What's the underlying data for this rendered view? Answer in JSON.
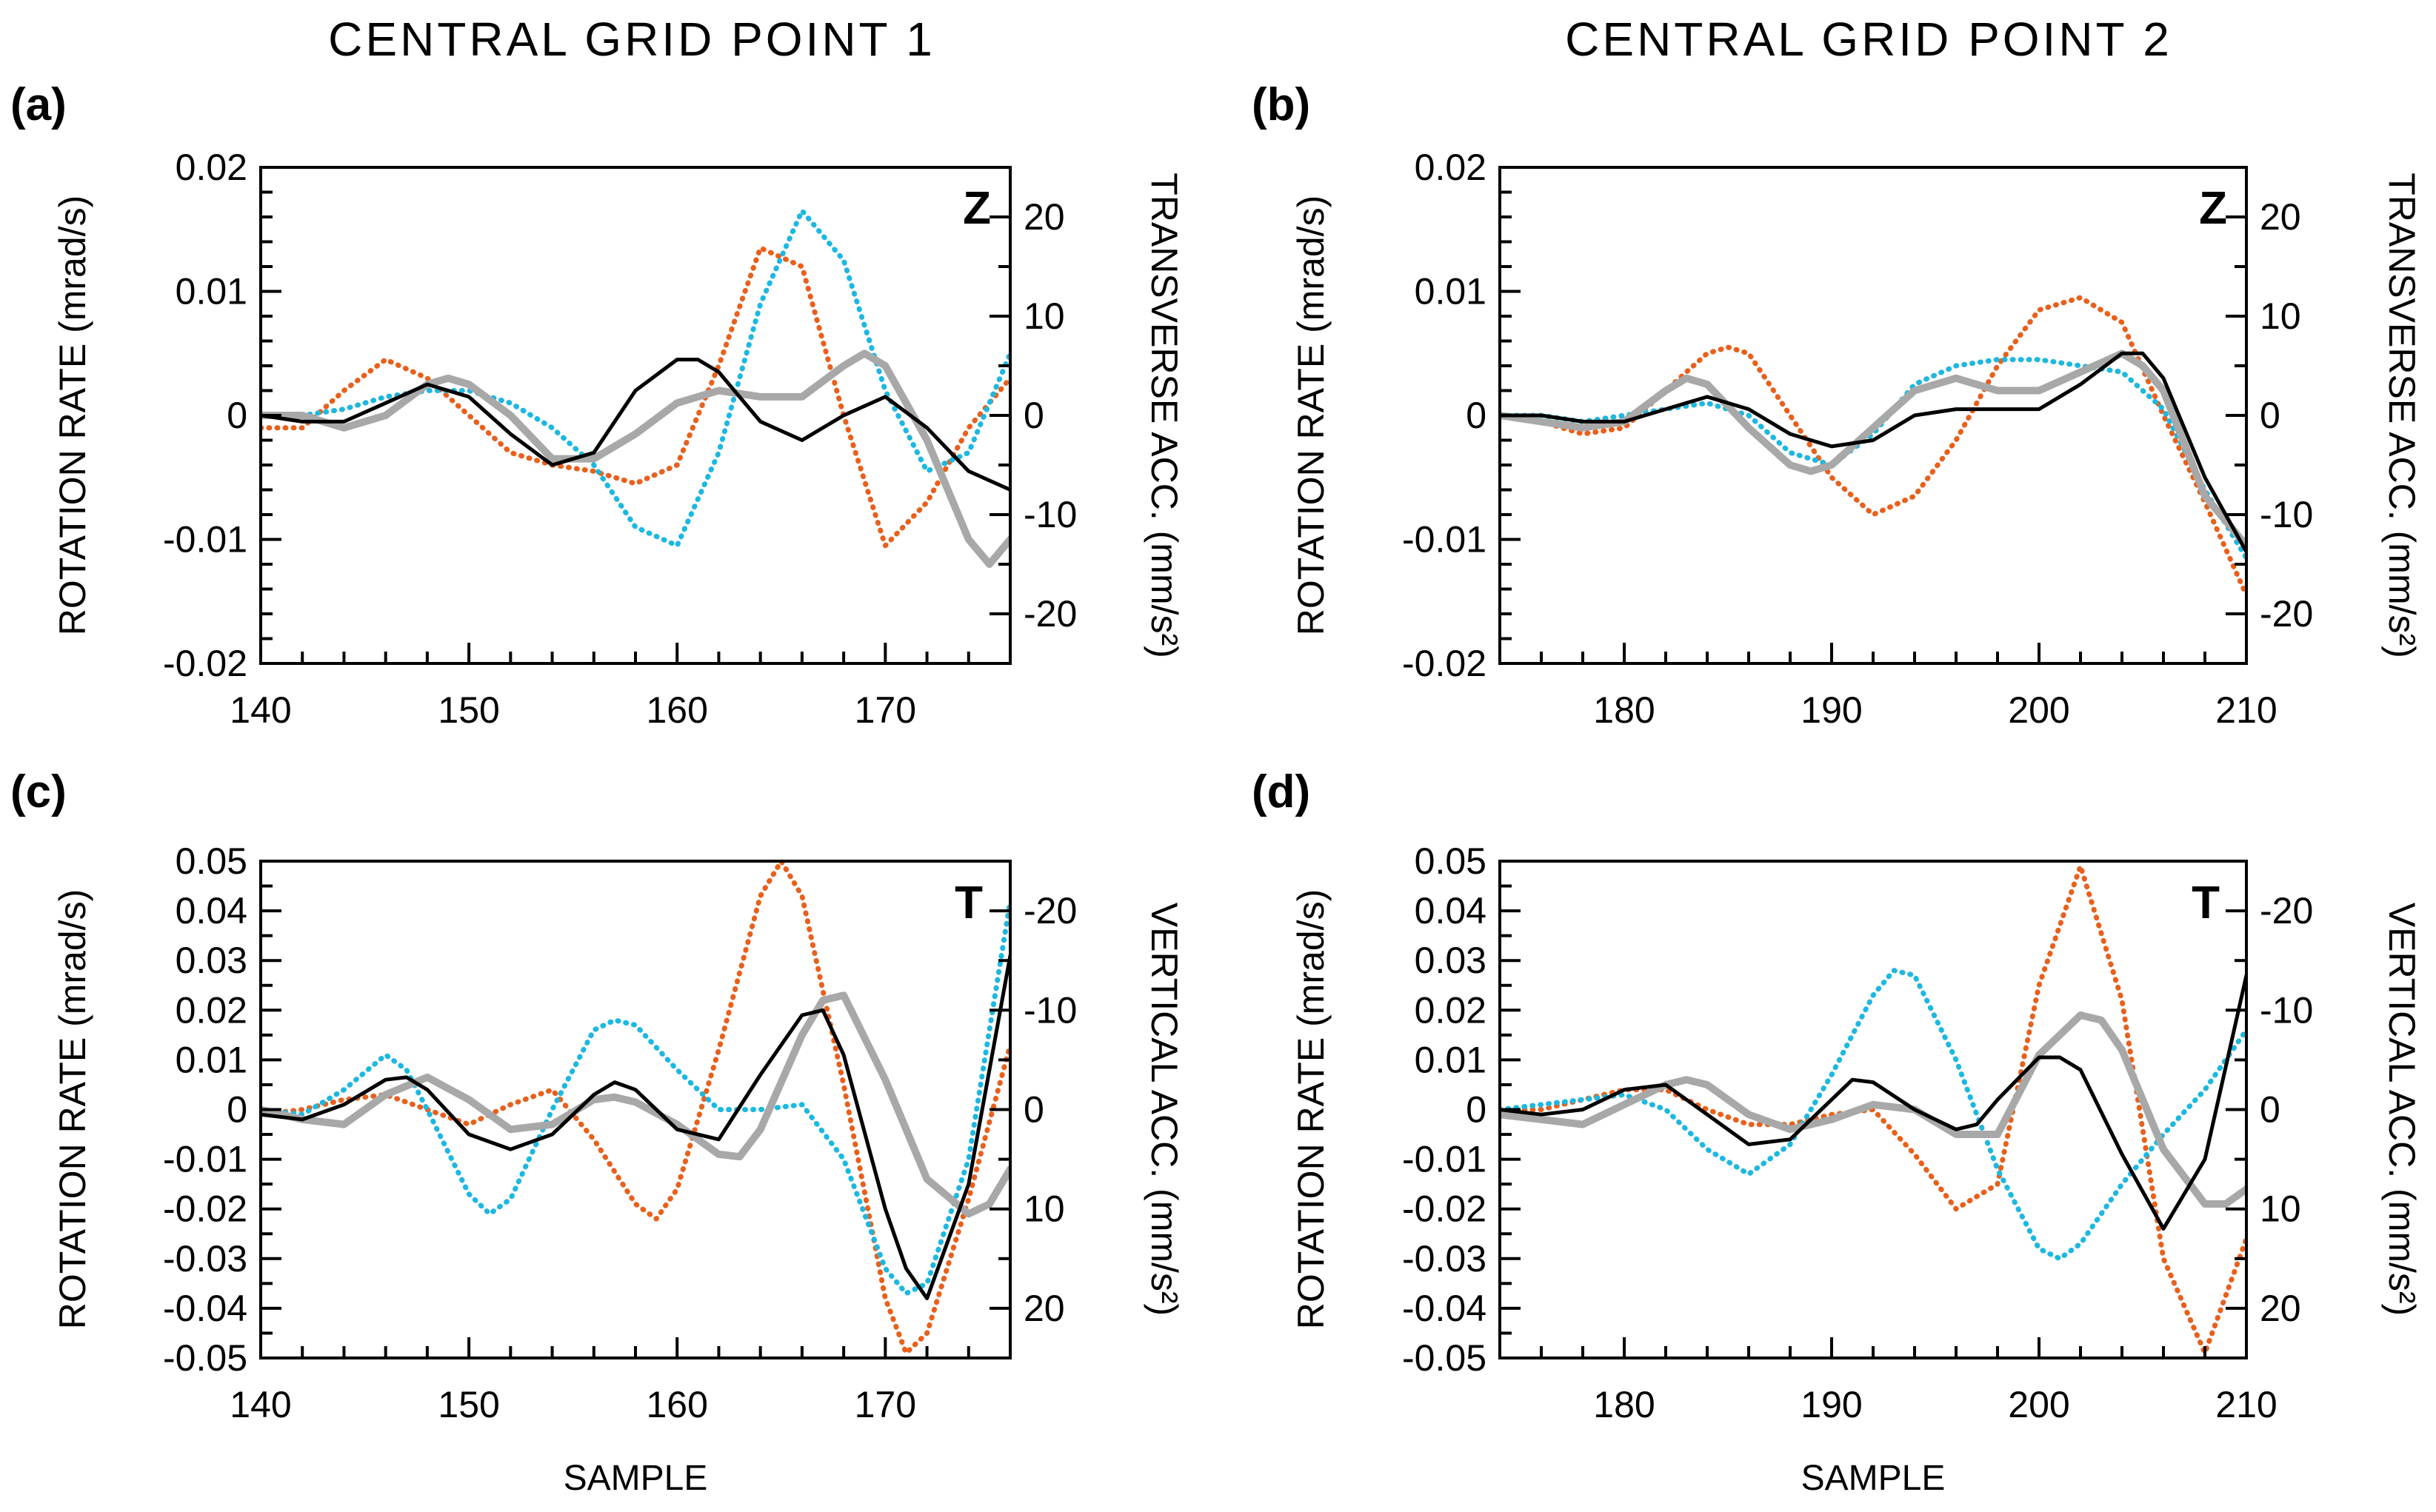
{
  "figure": {
    "col_titles": [
      "CENTRAL  GRID  POINT  1",
      "CENTRAL  GRID  POINT  2"
    ],
    "series_colors": {
      "dotted_orange": "#E8601C",
      "dotted_cyan": "#1CB8E0",
      "solid_black": "#000000",
      "solid_gray": "#A8A8A8"
    }
  },
  "chart_data": [
    {
      "type": "line",
      "panel": "(a)",
      "component": "Z",
      "xlabel": "",
      "ylabel_left": "ROTATION  RATE  (mrad/s)",
      "ylabel_right": "TRANSVERSE ACC. (mm/s²)",
      "xlim": [
        140,
        176
      ],
      "xticks": [
        140,
        150,
        160,
        170
      ],
      "ylim": [
        -0.02,
        0.02
      ],
      "yticks": [
        -0.02,
        -0.01,
        0,
        0.01,
        0.02
      ],
      "ytick_labels": [
        "-0.02",
        "-0.01",
        "0",
        "0.01",
        "0.02"
      ],
      "right_ylim_top": 25,
      "right_ylim_bottom": -25,
      "right_ticks": [
        20,
        10,
        0,
        -10,
        -20
      ],
      "grid": false,
      "series": [
        {
          "name": "orange dotted",
          "axis": "left",
          "style": "dotted_orange",
          "x": [
            140,
            142,
            144,
            146,
            148,
            150,
            152,
            154,
            156,
            158,
            160,
            162,
            164,
            166,
            168,
            170,
            172,
            174,
            176
          ],
          "y": [
            -0.001,
            -0.001,
            0.002,
            0.0045,
            0.003,
            0,
            -0.003,
            -0.004,
            -0.0045,
            -0.0055,
            -0.004,
            0.004,
            0.0135,
            0.012,
            0.0,
            -0.0105,
            -0.007,
            -0.001,
            0.003
          ]
        },
        {
          "name": "cyan dotted",
          "axis": "left",
          "style": "dotted_cyan",
          "x": [
            140,
            142,
            144,
            146,
            148,
            150,
            152,
            154,
            156,
            158,
            160,
            162,
            164,
            166,
            168,
            170,
            172,
            174,
            176
          ],
          "y": [
            0,
            0,
            0.0005,
            0.0015,
            0.002,
            0.002,
            0.001,
            -0.001,
            -0.004,
            -0.009,
            -0.0105,
            -0.003,
            0.009,
            0.0165,
            0.0125,
            0.002,
            -0.0045,
            -0.003,
            0.005
          ]
        },
        {
          "name": "black solid",
          "axis": "left",
          "style": "solid_black",
          "x": [
            140,
            142,
            144,
            146,
            148,
            150,
            152,
            154,
            156,
            158,
            160,
            161,
            162,
            164,
            166,
            168,
            170,
            172,
            174,
            176
          ],
          "y": [
            0,
            -0.0005,
            -0.0005,
            0.001,
            0.0025,
            0.0015,
            -0.0015,
            -0.004,
            -0.003,
            0.002,
            0.0045,
            0.0045,
            0.0035,
            -0.0005,
            -0.002,
            0,
            0.0015,
            -0.001,
            -0.0045,
            -0.006
          ]
        },
        {
          "name": "gray solid",
          "axis": "left",
          "style": "solid_gray",
          "x": [
            140,
            142,
            144,
            146,
            148,
            149,
            150,
            152,
            154,
            156,
            158,
            160,
            162,
            164,
            166,
            168,
            169,
            170,
            172,
            174,
            175,
            176
          ],
          "y": [
            0,
            0,
            -0.001,
            0,
            0.0025,
            0.003,
            0.0025,
            0,
            -0.0035,
            -0.0035,
            -0.0015,
            0.001,
            0.002,
            0.0015,
            0.0015,
            0.004,
            0.005,
            0.004,
            -0.002,
            -0.01,
            -0.012,
            -0.01
          ]
        }
      ]
    },
    {
      "type": "line",
      "panel": "(b)",
      "component": "Z",
      "xlabel": "",
      "ylabel_left": "ROTATION  RATE  (mrad/s)",
      "ylabel_right": "TRANSVERSE ACC. (mm/s²)",
      "xlim": [
        174,
        210
      ],
      "xticks": [
        180,
        190,
        200,
        210
      ],
      "ylim": [
        -0.02,
        0.02
      ],
      "yticks": [
        -0.02,
        -0.01,
        0,
        0.01,
        0.02
      ],
      "ytick_labels": [
        "-0.02",
        "-0.01",
        "0",
        "0.01",
        "0.02"
      ],
      "right_ylim_top": 25,
      "right_ylim_bottom": -25,
      "right_ticks": [
        20,
        10,
        0,
        -10,
        -20
      ],
      "grid": false,
      "series": [
        {
          "name": "orange dotted",
          "axis": "left",
          "style": "dotted_orange",
          "x": [
            174,
            176,
            178,
            180,
            182,
            184,
            185,
            186,
            188,
            190,
            192,
            194,
            196,
            198,
            200,
            202,
            204,
            206,
            208,
            210
          ],
          "y": [
            0,
            -0.0005,
            -0.0015,
            -0.001,
            0.002,
            0.005,
            0.0055,
            0.005,
            0,
            -0.005,
            -0.008,
            -0.0065,
            -0.002,
            0.004,
            0.0085,
            0.0095,
            0.0075,
            0,
            -0.007,
            -0.0145
          ]
        },
        {
          "name": "cyan dotted",
          "axis": "left",
          "style": "dotted_cyan",
          "x": [
            174,
            176,
            178,
            180,
            182,
            184,
            186,
            188,
            190,
            192,
            194,
            196,
            198,
            200,
            202,
            204,
            206,
            208,
            210
          ],
          "y": [
            0,
            0,
            -0.0005,
            0,
            0.0005,
            0.001,
            0,
            -0.003,
            -0.004,
            -0.0015,
            0.0025,
            0.004,
            0.0045,
            0.0045,
            0.004,
            0.0035,
            0.0005,
            -0.006,
            -0.0115
          ]
        },
        {
          "name": "black solid",
          "axis": "left",
          "style": "solid_black",
          "x": [
            174,
            176,
            178,
            180,
            182,
            184,
            186,
            188,
            190,
            192,
            194,
            196,
            198,
            200,
            202,
            204,
            205,
            206,
            208,
            210
          ],
          "y": [
            0,
            0,
            -0.0005,
            -0.0005,
            0.0005,
            0.0015,
            0.0005,
            -0.0015,
            -0.0025,
            -0.002,
            0,
            0.0005,
            0.0005,
            0.0005,
            0.0025,
            0.005,
            0.005,
            0.003,
            -0.005,
            -0.011
          ]
        },
        {
          "name": "gray solid",
          "axis": "left",
          "style": "solid_gray",
          "x": [
            174,
            176,
            178,
            180,
            182,
            183,
            184,
            186,
            188,
            189,
            190,
            192,
            194,
            196,
            198,
            200,
            202,
            204,
            205,
            206,
            208,
            210
          ],
          "y": [
            0,
            -0.0005,
            -0.001,
            -0.0005,
            0.002,
            0.003,
            0.0025,
            -0.001,
            -0.004,
            -0.0045,
            -0.004,
            -0.001,
            0.002,
            0.003,
            0.002,
            0.002,
            0.0035,
            0.005,
            0.004,
            0.002,
            -0.0065,
            -0.0105
          ]
        }
      ]
    },
    {
      "type": "line",
      "panel": "(c)",
      "component": "T",
      "xlabel": "SAMPLE",
      "ylabel_left": "ROTATION  RATE  (mrad/s)",
      "ylabel_right": "VERTICAL ACC. (mm/s²)",
      "xlim": [
        140,
        176
      ],
      "xticks": [
        140,
        150,
        160,
        170
      ],
      "ylim": [
        -0.05,
        0.05
      ],
      "yticks": [
        -0.05,
        -0.04,
        -0.03,
        -0.02,
        -0.01,
        0,
        0.01,
        0.02,
        0.03,
        0.04,
        0.05
      ],
      "ytick_labels": [
        "-0.05",
        "-0.04",
        "-0.03",
        "-0.02",
        "-0.01",
        "0",
        "0.01",
        "0.02",
        "0.03",
        "0.04",
        "0.05"
      ],
      "right_ylim_top": -25,
      "right_ylim_bottom": 25,
      "right_ticks": [
        -20,
        -10,
        0,
        10,
        20
      ],
      "grid": false,
      "series": [
        {
          "name": "orange dotted",
          "axis": "left",
          "style": "dotted_orange",
          "x": [
            140,
            142,
            144,
            146,
            148,
            150,
            152,
            154,
            156,
            158,
            159,
            160,
            162,
            164,
            165,
            166,
            168,
            170,
            171,
            172,
            174,
            176
          ],
          "y": [
            -0.001,
            0,
            0.002,
            0.003,
            0,
            -0.003,
            0.001,
            0.004,
            -0.006,
            -0.019,
            -0.022,
            -0.016,
            0.012,
            0.043,
            0.05,
            0.043,
            0.005,
            -0.038,
            -0.049,
            -0.045,
            -0.018,
            0.013
          ]
        },
        {
          "name": "cyan dotted",
          "axis": "left",
          "style": "dotted_cyan",
          "x": [
            140,
            142,
            144,
            146,
            147,
            148,
            150,
            151,
            152,
            154,
            156,
            157,
            158,
            160,
            162,
            164,
            166,
            168,
            170,
            171,
            172,
            174,
            176
          ],
          "y": [
            0,
            -0.001,
            0.004,
            0.011,
            0.008,
            0,
            -0.017,
            -0.021,
            -0.018,
            0,
            0.016,
            0.018,
            0.017,
            0.008,
            0,
            0,
            0.001,
            -0.01,
            -0.032,
            -0.037,
            -0.035,
            -0.01,
            0.042
          ]
        },
        {
          "name": "black solid",
          "axis": "left",
          "style": "solid_black",
          "x": [
            140,
            142,
            144,
            146,
            147,
            148,
            150,
            152,
            154,
            156,
            157,
            158,
            160,
            162,
            164,
            166,
            167,
            168,
            170,
            171,
            172,
            174,
            176
          ],
          "y": [
            -0.001,
            -0.002,
            0.001,
            0.006,
            0.0065,
            0.004,
            -0.005,
            -0.008,
            -0.005,
            0.003,
            0.0055,
            0.004,
            -0.004,
            -0.006,
            0.007,
            0.019,
            0.02,
            0.011,
            -0.02,
            -0.032,
            -0.038,
            -0.015,
            0.031
          ]
        },
        {
          "name": "gray solid",
          "axis": "left",
          "style": "solid_gray",
          "x": [
            140,
            142,
            144,
            146,
            148,
            150,
            152,
            154,
            156,
            157,
            158,
            160,
            162,
            163,
            164,
            166,
            167,
            168,
            170,
            172,
            174,
            175,
            176
          ],
          "y": [
            0,
            -0.002,
            -0.003,
            0.003,
            0.0065,
            0.002,
            -0.004,
            -0.003,
            0.002,
            0.0025,
            0.0015,
            -0.003,
            -0.009,
            -0.0095,
            -0.004,
            0.015,
            0.022,
            0.023,
            0.006,
            -0.014,
            -0.021,
            -0.019,
            -0.012
          ]
        }
      ]
    },
    {
      "type": "line",
      "panel": "(d)",
      "component": "T",
      "xlabel": "SAMPLE",
      "ylabel_left": "ROTATION  RATE  (mrad/s)",
      "ylabel_right": "VERTICAL ACC. (mm/s²)",
      "xlim": [
        174,
        210
      ],
      "xticks": [
        180,
        190,
        200,
        210
      ],
      "ylim": [
        -0.05,
        0.05
      ],
      "yticks": [
        -0.05,
        -0.04,
        -0.03,
        -0.02,
        -0.01,
        0,
        0.01,
        0.02,
        0.03,
        0.04,
        0.05
      ],
      "ytick_labels": [
        "-0.05",
        "-0.04",
        "-0.03",
        "-0.02",
        "-0.01",
        "0",
        "0.01",
        "0.02",
        "0.03",
        "0.04",
        "0.05"
      ],
      "right_ylim_top": -25,
      "right_ylim_bottom": 25,
      "right_ticks": [
        -20,
        -10,
        0,
        10,
        20
      ],
      "grid": false,
      "series": [
        {
          "name": "orange dotted",
          "axis": "left",
          "style": "dotted_orange",
          "x": [
            174,
            176,
            178,
            180,
            182,
            184,
            186,
            188,
            190,
            192,
            194,
            196,
            198,
            200,
            202,
            204,
            206,
            208,
            210
          ],
          "y": [
            0,
            0,
            0.002,
            0.004,
            0.004,
            0,
            -0.003,
            -0.003,
            -0.001,
            0,
            -0.009,
            -0.02,
            -0.015,
            0.025,
            0.049,
            0.022,
            -0.03,
            -0.049,
            -0.026
          ]
        },
        {
          "name": "cyan dotted",
          "axis": "left",
          "style": "dotted_cyan",
          "x": [
            174,
            176,
            178,
            180,
            182,
            184,
            186,
            188,
            190,
            192,
            193,
            194,
            196,
            198,
            200,
            201,
            202,
            204,
            206,
            208,
            210
          ],
          "y": [
            0,
            0.001,
            0.002,
            0.003,
            0,
            -0.008,
            -0.013,
            -0.007,
            0.007,
            0.023,
            0.028,
            0.027,
            0.01,
            -0.012,
            -0.028,
            -0.03,
            -0.027,
            -0.015,
            -0.005,
            0.004,
            0.016
          ]
        },
        {
          "name": "black solid",
          "axis": "left",
          "style": "solid_black",
          "x": [
            174,
            176,
            178,
            180,
            182,
            184,
            186,
            188,
            190,
            191,
            192,
            194,
            196,
            197,
            198,
            200,
            201,
            202,
            204,
            206,
            208,
            210
          ],
          "y": [
            0,
            -0.001,
            0,
            0.004,
            0.005,
            -0.001,
            -0.007,
            -0.006,
            0.002,
            0.006,
            0.0055,
            0,
            -0.004,
            -0.003,
            0.002,
            0.0105,
            0.0105,
            0.008,
            -0.009,
            -0.024,
            -0.01,
            0.027
          ]
        },
        {
          "name": "gray solid",
          "axis": "left",
          "style": "solid_gray",
          "x": [
            174,
            176,
            178,
            180,
            182,
            183,
            184,
            186,
            188,
            190,
            192,
            194,
            196,
            198,
            200,
            202,
            203,
            204,
            206,
            208,
            209,
            210
          ],
          "y": [
            -0.001,
            -0.002,
            -0.003,
            0.001,
            0.005,
            0.006,
            0.005,
            -0.001,
            -0.004,
            -0.002,
            0.001,
            0,
            -0.005,
            -0.005,
            0.011,
            0.019,
            0.018,
            0.012,
            -0.008,
            -0.019,
            -0.019,
            -0.016
          ]
        }
      ]
    }
  ]
}
